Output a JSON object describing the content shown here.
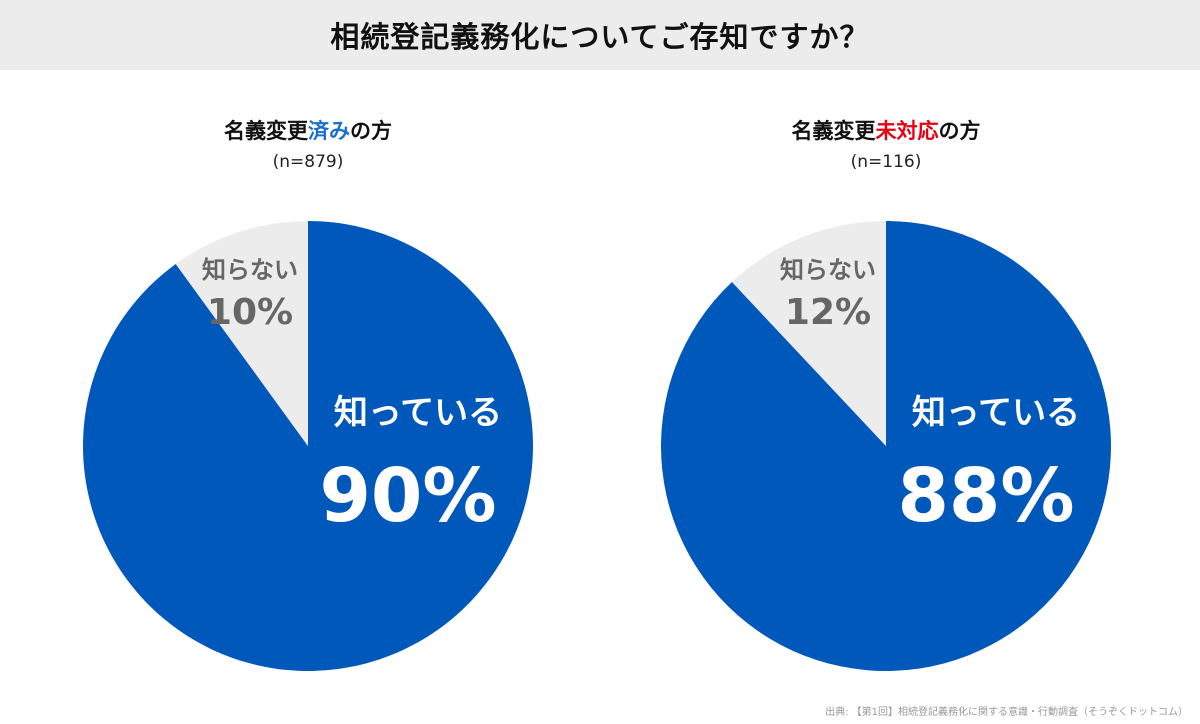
{
  "header": {
    "title": "相続登記義務化についてご存知ですか？"
  },
  "chart_data": [
    {
      "type": "pie",
      "title_prefix": "名義変更",
      "title_highlight": "済み",
      "title_suffix": "の方",
      "highlight_color": "#1a6fce",
      "n_label": "(n=879)",
      "slices": [
        {
          "label": "知っている",
          "value": 90,
          "value_label": "90%",
          "color": "#0058bb"
        },
        {
          "label": "知らない",
          "value": 10,
          "value_label": "10%",
          "color": "#ececec"
        }
      ]
    },
    {
      "type": "pie",
      "title_prefix": "名義変更",
      "title_highlight": "未対応",
      "title_suffix": "の方",
      "highlight_color": "#e60012",
      "n_label": "(n=116)",
      "slices": [
        {
          "label": "知っている",
          "value": 88,
          "value_label": "88%",
          "color": "#0058bb"
        },
        {
          "label": "知らない",
          "value": 12,
          "value_label": "12%",
          "color": "#ececec"
        }
      ]
    }
  ],
  "source": "出典: 【第1回】相続登記義務化に関する意識・行動調査（そうぞくドットコム）"
}
